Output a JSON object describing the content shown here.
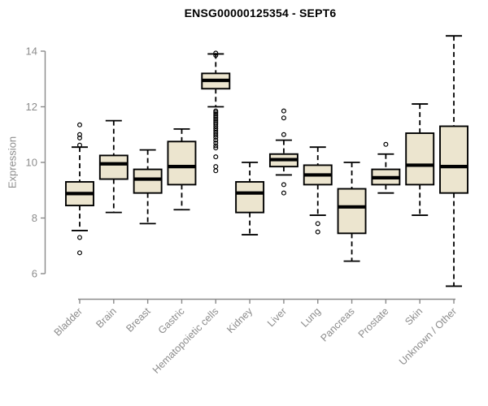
{
  "chart_data": {
    "type": "boxplot",
    "title": "ENSG00000125354 - SEPT6",
    "ylabel": "Expression",
    "xlabel": "",
    "ylim": [
      5.4,
      14.7
    ],
    "yticks": [
      6,
      8,
      10,
      12,
      14
    ],
    "grid": false,
    "legend": "none",
    "categories": [
      "Bladder",
      "Brain",
      "Breast",
      "Gastric",
      "Hematopoietic cells",
      "Kidney",
      "Liver",
      "Lung",
      "Pancreas",
      "Prostate",
      "Skin",
      "Unknown / Other"
    ],
    "series": [
      {
        "name": "Bladder",
        "low": 7.55,
        "q1": 8.45,
        "median": 8.88,
        "q3": 9.3,
        "high": 10.55,
        "outliers": [
          11.35,
          11.0,
          10.88,
          10.62,
          7.3,
          6.75
        ]
      },
      {
        "name": "Brain",
        "low": 8.2,
        "q1": 9.4,
        "median": 9.95,
        "q3": 10.25,
        "high": 11.5,
        "outliers": []
      },
      {
        "name": "Breast",
        "low": 7.8,
        "q1": 8.9,
        "median": 9.4,
        "q3": 9.75,
        "high": 10.45,
        "outliers": []
      },
      {
        "name": "Gastric",
        "low": 8.3,
        "q1": 9.2,
        "median": 9.85,
        "q3": 10.75,
        "high": 11.2,
        "outliers": []
      },
      {
        "name": "Hematopoietic cells",
        "low": 12.0,
        "q1": 12.65,
        "median": 12.95,
        "q3": 13.2,
        "high": 13.9,
        "outliers": [
          13.93,
          13.85,
          11.85,
          11.8,
          11.74,
          11.68,
          11.62,
          11.56,
          11.5,
          11.44,
          11.38,
          11.3,
          11.22,
          11.14,
          11.06,
          10.98,
          10.9,
          10.8,
          10.7,
          10.6,
          10.52,
          10.2,
          9.85,
          9.7
        ]
      },
      {
        "name": "Kidney",
        "low": 7.4,
        "q1": 8.2,
        "median": 8.9,
        "q3": 9.3,
        "high": 10.0,
        "outliers": []
      },
      {
        "name": "Liver",
        "low": 9.55,
        "q1": 9.85,
        "median": 10.1,
        "q3": 10.3,
        "high": 10.8,
        "outliers": [
          11.85,
          11.6,
          11.0,
          9.2,
          8.9
        ]
      },
      {
        "name": "Lung",
        "low": 8.1,
        "q1": 9.2,
        "median": 9.55,
        "q3": 9.9,
        "high": 10.55,
        "outliers": [
          7.8,
          7.5
        ]
      },
      {
        "name": "Pancreas",
        "low": 6.45,
        "q1": 7.45,
        "median": 8.4,
        "q3": 9.05,
        "high": 10.0,
        "outliers": []
      },
      {
        "name": "Prostate",
        "low": 8.9,
        "q1": 9.2,
        "median": 9.45,
        "q3": 9.75,
        "high": 10.3,
        "outliers": [
          10.65
        ]
      },
      {
        "name": "Skin",
        "low": 8.1,
        "q1": 9.2,
        "median": 9.9,
        "q3": 11.05,
        "high": 12.1,
        "outliers": []
      },
      {
        "name": "Unknown / Other",
        "low": 5.55,
        "q1": 8.9,
        "median": 9.85,
        "q3": 11.3,
        "high": 14.55,
        "outliers": []
      }
    ],
    "colors": {
      "box_fill": "#ece5cf",
      "box_border": "#000000",
      "median": "#000000",
      "whisker": "#000000",
      "axis": "#8a8a8a",
      "tick_text": "#8c8c8c",
      "title_text": "#000000",
      "background": "#ffffff"
    }
  }
}
